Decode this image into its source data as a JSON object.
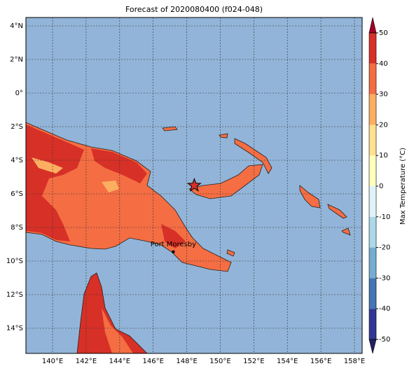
{
  "title": "Forecast of 2020080400 (f024-048)",
  "map": {
    "lonlim": [
      138.41,
      158.46
    ],
    "latlim": [
      -15.5,
      4.5
    ],
    "lonticks": [
      {
        "value": 140,
        "label": "140°E"
      },
      {
        "value": 142,
        "label": "142°E"
      },
      {
        "value": 144,
        "label": "144°E"
      },
      {
        "value": 146,
        "label": "146°E"
      },
      {
        "value": 148,
        "label": "148°E"
      },
      {
        "value": 150,
        "label": "150°E"
      },
      {
        "value": 152,
        "label": "152°E"
      },
      {
        "value": 154,
        "label": "154°E"
      },
      {
        "value": 156,
        "label": "156°E"
      },
      {
        "value": 158,
        "label": "158°E"
      }
    ],
    "latticks": [
      {
        "value": 4,
        "label": "4°N"
      },
      {
        "value": 2,
        "label": "2°N"
      },
      {
        "value": 0,
        "label": "0°"
      },
      {
        "value": -2,
        "label": "2°S"
      },
      {
        "value": -4,
        "label": "4°S"
      },
      {
        "value": -6,
        "label": "6°S"
      },
      {
        "value": -8,
        "label": "8°S"
      },
      {
        "value": -10,
        "label": "10°S"
      },
      {
        "value": -12,
        "label": "12°S"
      },
      {
        "value": -14,
        "label": "14°S"
      }
    ],
    "grid": true,
    "city": {
      "label": "Port Moresby",
      "lon": 147.2,
      "lat": -9.45
    },
    "star": {
      "lon": 148.45,
      "lat": -5.5
    }
  },
  "colorbar": {
    "label": "Max Temperature (°C)",
    "lim": [
      -50,
      50
    ],
    "ticks": [
      -50,
      -40,
      -30,
      -20,
      -10,
      0,
      10,
      20,
      30,
      40,
      50
    ],
    "colors": [
      "#313695",
      "#4575b4",
      "#74add1",
      "#abd9e9",
      "#e0f3f8",
      "#ffffbf",
      "#fee090",
      "#fdae61",
      "#f46d43",
      "#d73027"
    ],
    "under": "#23215e",
    "over": "#a50026"
  }
}
